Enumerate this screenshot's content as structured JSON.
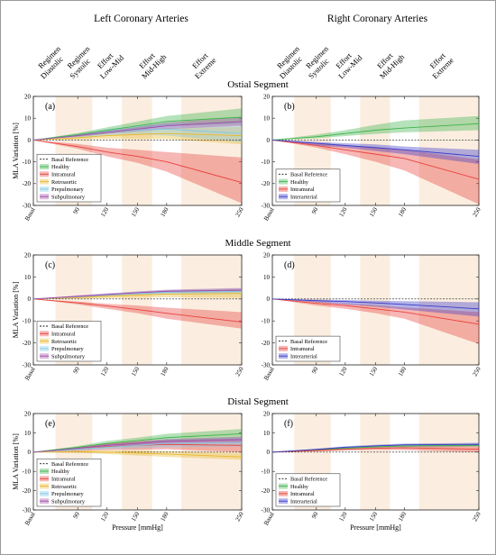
{
  "column_titles": [
    "Left Coronary Arteries",
    "Right Coronary Arteries"
  ],
  "segment_titles": [
    "Ostial Segment",
    "Middle Segment",
    "Distal Segment"
  ],
  "regimes": [
    {
      "label": [
        "Diastolic",
        "Regimen"
      ],
      "at": 0
    },
    {
      "label": [
        "Systolic",
        "Regimen"
      ],
      "at": 90
    },
    {
      "label": [
        "Low-Mid",
        "Effort"
      ],
      "at": 120
    },
    {
      "label": [
        "Mid-High",
        "Effort"
      ],
      "at": 165
    },
    {
      "label": [
        "Extreme",
        "Effort"
      ],
      "at": 220
    }
  ],
  "colors": {
    "Basal Reference": "#1a1a1a",
    "Healthy": "#3cb44b",
    "Intramural": "#e8413d",
    "Retroaortic": "#e8b82e",
    "Prepulmonary": "#7fc8e8",
    "Subpulmonary": "#a04aa8",
    "Interarterial": "#3a3ac8",
    "regime_background": "#fbeee0"
  },
  "chart_data": [
    {
      "panel": "(a)",
      "type": "area",
      "xlabel": "",
      "ylabel": "MLA Variation [%]",
      "x": [
        "Basal",
        90,
        120,
        150,
        180,
        250
      ],
      "ylim": [
        -30,
        20
      ],
      "yticks": [
        20,
        10,
        0,
        -10,
        -20,
        -30
      ],
      "grid": false,
      "legend": "bottom-left",
      "series": [
        {
          "name": "Basal Reference",
          "values": [
            0,
            0,
            0,
            0,
            0,
            0
          ]
        },
        {
          "name": "Healthy",
          "values": [
            0,
            2.5,
            4.5,
            6.5,
            8.5,
            10.5
          ],
          "lower": [
            0,
            1.8,
            3.2,
            4.8,
            6.5,
            7.5
          ],
          "upper": [
            0,
            3.2,
            5.8,
            8.5,
            11,
            14.5
          ]
        },
        {
          "name": "Intramural",
          "values": [
            0,
            -3,
            -5.5,
            -7.5,
            -10,
            -19.5
          ],
          "lower": [
            0,
            -4,
            -7.5,
            -10.5,
            -14.5,
            -29
          ],
          "upper": [
            0,
            -1.8,
            -3.5,
            -4.5,
            -5.5,
            -8
          ]
        },
        {
          "name": "Retroaortic",
          "values": [
            0,
            1,
            2,
            2.5,
            3,
            2
          ],
          "lower": [
            0,
            0.2,
            0.5,
            0.5,
            0.5,
            -2
          ],
          "upper": [
            0,
            1.8,
            3.5,
            4.5,
            5.5,
            6
          ]
        },
        {
          "name": "Prepulmonary",
          "values": [
            0,
            2,
            3.5,
            4.5,
            5,
            3
          ],
          "lower": [
            0,
            1.2,
            2,
            2.5,
            2,
            -1
          ],
          "upper": [
            0,
            2.8,
            5,
            6.5,
            7.5,
            8
          ]
        },
        {
          "name": "Subpulmonary",
          "values": [
            0,
            2,
            3.5,
            5,
            6.5,
            8.5
          ],
          "lower": [
            0,
            1.5,
            2.8,
            4,
            5,
            6.5
          ],
          "upper": [
            0,
            2.5,
            4.2,
            6,
            8,
            10.5
          ]
        }
      ]
    },
    {
      "panel": "(b)",
      "type": "area",
      "xlabel": "",
      "ylabel": "",
      "x": [
        "Basal",
        90,
        120,
        150,
        180,
        250
      ],
      "ylim": [
        -30,
        20
      ],
      "yticks": [
        20,
        10,
        0,
        -10,
        -20,
        -30
      ],
      "grid": false,
      "legend": "bottom-left",
      "series": [
        {
          "name": "Basal Reference",
          "values": [
            0,
            0,
            0,
            0,
            0,
            0
          ]
        },
        {
          "name": "Healthy",
          "values": [
            0,
            1.5,
            3,
            4.5,
            5.5,
            7.5
          ],
          "lower": [
            0,
            0.8,
            1.8,
            2.8,
            3.5,
            4.5
          ],
          "upper": [
            0,
            2.5,
            4.5,
            7,
            9,
            11
          ]
        },
        {
          "name": "Intramural",
          "values": [
            0,
            -2.5,
            -4.5,
            -6.5,
            -8.5,
            -18
          ],
          "lower": [
            0,
            -3.5,
            -6.5,
            -10,
            -14,
            -29.5
          ],
          "upper": [
            0,
            -1.5,
            -2.5,
            -3.5,
            -4.5,
            -9
          ]
        },
        {
          "name": "Interarterial",
          "values": [
            0,
            -1.5,
            -2.5,
            -3.5,
            -4.5,
            -7.5
          ],
          "lower": [
            0,
            -2.5,
            -3.5,
            -5,
            -6.5,
            -11
          ],
          "upper": [
            0,
            -0.8,
            -1.5,
            -2,
            -3,
            -4.5
          ]
        }
      ]
    },
    {
      "panel": "(c)",
      "type": "area",
      "xlabel": "",
      "ylabel": "MLA Variation [%]",
      "x": [
        "Basal",
        90,
        120,
        150,
        180,
        250
      ],
      "ylim": [
        -30,
        20
      ],
      "yticks": [
        20,
        10,
        0,
        -10,
        -20,
        -30
      ],
      "grid": false,
      "legend": "bottom-left",
      "series": [
        {
          "name": "Basal Reference",
          "values": [
            0,
            0,
            0,
            0,
            0,
            0
          ]
        },
        {
          "name": "Intramural",
          "values": [
            0,
            -1.8,
            -3.2,
            -4.8,
            -6.5,
            -10.5
          ],
          "lower": [
            0,
            -2.5,
            -4.5,
            -6.5,
            -9,
            -13.5
          ],
          "upper": [
            0,
            -1.2,
            -2.2,
            -3,
            -4,
            -6
          ]
        },
        {
          "name": "Retroaortic",
          "values": [
            0,
            0.6,
            1.2,
            1.8,
            2.2,
            2.5
          ],
          "lower": [
            0,
            0.2,
            0.4,
            0.6,
            0.8,
            0.5
          ],
          "upper": [
            0,
            1,
            1.8,
            2.8,
            3.5,
            4.5
          ]
        },
        {
          "name": "Prepulmonary",
          "values": [
            0,
            1,
            1.8,
            2.5,
            3,
            3.5
          ],
          "lower": [
            0,
            0.6,
            1.2,
            1.6,
            2,
            2.2
          ],
          "upper": [
            0,
            1.4,
            2.4,
            3.4,
            4,
            4.8
          ]
        },
        {
          "name": "Subpulmonary",
          "values": [
            0,
            1.2,
            2,
            2.8,
            3.5,
            4
          ],
          "lower": [
            0,
            0.8,
            1.5,
            2.2,
            2.8,
            3.2
          ],
          "upper": [
            0,
            1.6,
            2.6,
            3.4,
            4.2,
            5
          ]
        }
      ]
    },
    {
      "panel": "(d)",
      "type": "area",
      "xlabel": "",
      "ylabel": "",
      "x": [
        "Basal",
        90,
        120,
        150,
        180,
        250
      ],
      "ylim": [
        -30,
        20
      ],
      "yticks": [
        20,
        10,
        0,
        -10,
        -20,
        -30
      ],
      "grid": false,
      "legend": "bottom-left",
      "series": [
        {
          "name": "Basal Reference",
          "values": [
            0,
            0,
            0,
            0,
            0,
            0
          ]
        },
        {
          "name": "Intramural",
          "values": [
            0,
            -2,
            -3,
            -4.5,
            -6,
            -11.5
          ],
          "lower": [
            0,
            -3,
            -4.5,
            -6.5,
            -9,
            -20.5
          ],
          "upper": [
            0,
            -1.2,
            -2,
            -3,
            -3.8,
            -6
          ]
        },
        {
          "name": "Interarterial",
          "values": [
            0,
            -0.8,
            -1.2,
            -1.8,
            -2.5,
            -4.5
          ],
          "lower": [
            0,
            -1.5,
            -2.5,
            -3.5,
            -4.8,
            -8
          ],
          "upper": [
            0,
            -0.3,
            -0.5,
            -0.8,
            -1,
            -1.5
          ]
        }
      ]
    },
    {
      "panel": "(e)",
      "type": "area",
      "xlabel": "Pressure [mmHg]",
      "ylabel": "MLA Variation [%]",
      "x": [
        "Basal",
        90,
        120,
        150,
        180,
        250
      ],
      "ylim": [
        -30,
        20
      ],
      "yticks": [
        20,
        10,
        0,
        -10,
        -20,
        -30
      ],
      "grid": false,
      "legend": "bottom-left",
      "series": [
        {
          "name": "Basal Reference",
          "values": [
            0,
            0,
            0,
            0,
            0,
            0
          ]
        },
        {
          "name": "Healthy",
          "values": [
            0,
            2.5,
            4.5,
            6,
            7.5,
            9.5
          ],
          "lower": [
            0,
            1.8,
            3.2,
            4.5,
            5.5,
            7
          ],
          "upper": [
            0,
            3.2,
            5.8,
            7.5,
            9.5,
            12
          ]
        },
        {
          "name": "Intramural",
          "values": [
            0,
            1.5,
            2.8,
            3.5,
            4,
            3.5
          ],
          "lower": [
            0,
            0.5,
            1,
            1.2,
            1.5,
            0
          ],
          "upper": [
            0,
            2.5,
            4.5,
            5.5,
            6.5,
            7
          ]
        },
        {
          "name": "Retroaortic",
          "values": [
            0,
            0.2,
            0,
            -0.5,
            -1,
            -2.5
          ],
          "lower": [
            0,
            -0.4,
            -1,
            -1.8,
            -2.5,
            -4
          ],
          "upper": [
            0,
            0.8,
            1,
            0.8,
            0.5,
            -0.5
          ]
        },
        {
          "name": "Prepulmonary",
          "values": [
            0,
            1.5,
            2.5,
            3.5,
            4.5,
            5
          ],
          "lower": [
            0,
            0.8,
            1.5,
            2,
            2.5,
            2.8
          ],
          "upper": [
            0,
            2.2,
            3.5,
            5,
            6.5,
            7.5
          ]
        },
        {
          "name": "Subpulmonary",
          "values": [
            0,
            2,
            3.5,
            4.5,
            5.5,
            6.5
          ],
          "lower": [
            0,
            1.5,
            2.8,
            3.5,
            4.2,
            5
          ],
          "upper": [
            0,
            2.5,
            4.2,
            5.5,
            6.8,
            8
          ]
        }
      ]
    },
    {
      "panel": "(f)",
      "type": "area",
      "xlabel": "Pressure [mmHg]",
      "ylabel": "",
      "x": [
        "Basal",
        90,
        120,
        150,
        180,
        250
      ],
      "ylim": [
        -30,
        20
      ],
      "yticks": [
        20,
        10,
        0,
        -10,
        -20,
        -30
      ],
      "grid": false,
      "legend": "bottom-left",
      "series": [
        {
          "name": "Basal Reference",
          "values": [
            0,
            0,
            0,
            0,
            0,
            0
          ]
        },
        {
          "name": "Healthy",
          "values": [
            0,
            1.2,
            2,
            2.8,
            3.2,
            3.5
          ],
          "lower": [
            0,
            0.8,
            1.5,
            2.2,
            2.5,
            2.8
          ],
          "upper": [
            0,
            1.6,
            2.5,
            3.4,
            3.8,
            4.2
          ]
        },
        {
          "name": "Intramural",
          "values": [
            0,
            0.8,
            1.5,
            2,
            2.2,
            1.5
          ],
          "lower": [
            0,
            0.4,
            0.8,
            1.2,
            1,
            0
          ],
          "upper": [
            0,
            1.2,
            2,
            2.8,
            3.2,
            3
          ]
        },
        {
          "name": "Interarterial",
          "values": [
            0,
            1.4,
            2.5,
            3.2,
            3.8,
            4
          ],
          "lower": [
            0,
            1,
            2,
            2.6,
            3,
            3.2
          ],
          "upper": [
            0,
            1.8,
            3,
            3.8,
            4.4,
            4.8
          ]
        }
      ]
    }
  ]
}
